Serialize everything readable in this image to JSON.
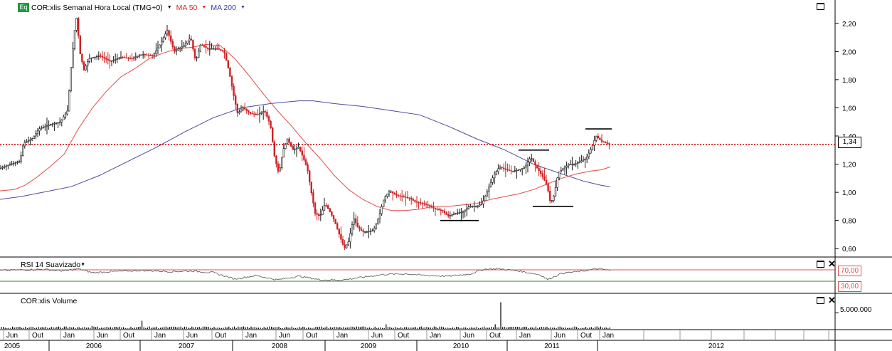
{
  "header": {
    "badge": "Eq",
    "instrument": "COR:xlis Semanal Hora Local (TMG+0)",
    "ma50_label": "MA 50",
    "ma200_label": "MA 200"
  },
  "rsi_panel": {
    "title": "RSI 14 Suavizado",
    "level_high": "70,00",
    "level_low": "30,00"
  },
  "volume_panel": {
    "title": "COR:xlis Volume",
    "axis_label": "5.000.000"
  },
  "last_price_label": "1,34",
  "colors": {
    "up": "#1a1a1a",
    "down": "#cc2222",
    "ma50": "#e34a4a",
    "ma200": "#4a4aa0",
    "rsi_high": "#d9534f",
    "rsi_low": "#2e8b2e",
    "price_line": "#cc0000"
  },
  "chart_data": [
    {
      "type": "candlestick",
      "ylim": [
        0.5,
        2.3
      ],
      "y_ticks": [
        "0,60",
        "0,80",
        "1,00",
        "1,20",
        "1,40",
        "1,60",
        "1,80",
        "2,00",
        "2,20"
      ],
      "last_price": 1.34,
      "x_month_labels": [
        "Jun",
        "Out",
        "Jan",
        "Jun",
        "Out",
        "Jan",
        "Jun",
        "Out",
        "Jan",
        "Jun",
        "Out",
        "Jan",
        "Jun",
        "Out",
        "Jan",
        "Jun",
        "Out",
        "Jan",
        "Jun",
        "Out",
        "Jan"
      ],
      "x_year_labels": [
        "2005",
        "2006",
        "2007",
        "2008",
        "2009",
        "2010",
        "2011",
        "2012"
      ],
      "price_path": [
        [
          0,
          1.17
        ],
        [
          15,
          1.2
        ],
        [
          28,
          1.22
        ],
        [
          33,
          1.35
        ],
        [
          45,
          1.38
        ],
        [
          55,
          1.45
        ],
        [
          70,
          1.48
        ],
        [
          85,
          1.5
        ],
        [
          95,
          1.58
        ],
        [
          100,
          1.9
        ],
        [
          105,
          2.15
        ],
        [
          108,
          2.25
        ],
        [
          112,
          2.0
        ],
        [
          118,
          1.87
        ],
        [
          125,
          1.95
        ],
        [
          140,
          1.97
        ],
        [
          155,
          1.93
        ],
        [
          170,
          1.96
        ],
        [
          185,
          1.95
        ],
        [
          200,
          1.98
        ],
        [
          215,
          1.97
        ],
        [
          225,
          2.05
        ],
        [
          235,
          2.15
        ],
        [
          245,
          2.0
        ],
        [
          258,
          2.04
        ],
        [
          268,
          2.1
        ],
        [
          275,
          1.93
        ],
        [
          282,
          2.05
        ],
        [
          292,
          2.02
        ],
        [
          305,
          2.02
        ],
        [
          315,
          2.0
        ],
        [
          322,
          1.86
        ],
        [
          328,
          1.7
        ],
        [
          334,
          1.56
        ],
        [
          342,
          1.6
        ],
        [
          352,
          1.56
        ],
        [
          362,
          1.55
        ],
        [
          372,
          1.58
        ],
        [
          380,
          1.48
        ],
        [
          386,
          1.25
        ],
        [
          392,
          1.13
        ],
        [
          398,
          1.3
        ],
        [
          404,
          1.38
        ],
        [
          412,
          1.3
        ],
        [
          420,
          1.32
        ],
        [
          426,
          1.25
        ],
        [
          432,
          1.17
        ],
        [
          437,
          1.02
        ],
        [
          443,
          0.85
        ],
        [
          450,
          0.83
        ],
        [
          457,
          0.92
        ],
        [
          463,
          0.87
        ],
        [
          470,
          0.8
        ],
        [
          477,
          0.7
        ],
        [
          484,
          0.6
        ],
        [
          490,
          0.65
        ],
        [
          497,
          0.82
        ],
        [
          503,
          0.75
        ],
        [
          510,
          0.72
        ],
        [
          517,
          0.72
        ],
        [
          525,
          0.73
        ],
        [
          533,
          0.83
        ],
        [
          540,
          0.96
        ],
        [
          548,
          1.01
        ],
        [
          556,
          0.98
        ],
        [
          565,
          0.97
        ],
        [
          575,
          0.96
        ],
        [
          585,
          0.93
        ],
        [
          595,
          0.92
        ],
        [
          605,
          0.9
        ],
        [
          613,
          0.88
        ],
        [
          622,
          0.87
        ],
        [
          630,
          0.83
        ],
        [
          640,
          0.85
        ],
        [
          650,
          0.86
        ],
        [
          660,
          0.9
        ],
        [
          670,
          0.9
        ],
        [
          678,
          0.92
        ],
        [
          686,
          1.02
        ],
        [
          694,
          1.12
        ],
        [
          702,
          1.18
        ],
        [
          712,
          1.16
        ],
        [
          720,
          1.15
        ],
        [
          730,
          1.16
        ],
        [
          738,
          1.18
        ],
        [
          746,
          1.25
        ],
        [
          754,
          1.18
        ],
        [
          762,
          1.12
        ],
        [
          769,
          1.05
        ],
        [
          774,
          0.92
        ],
        [
          779,
          0.98
        ],
        [
          785,
          1.14
        ],
        [
          792,
          1.17
        ],
        [
          800,
          1.2
        ],
        [
          808,
          1.2
        ],
        [
          816,
          1.22
        ],
        [
          824,
          1.24
        ],
        [
          832,
          1.32
        ],
        [
          838,
          1.4
        ],
        [
          846,
          1.36
        ],
        [
          852,
          1.35
        ],
        [
          858,
          1.34
        ]
      ],
      "ma50_path": [
        [
          0,
          1.01
        ],
        [
          20,
          1.02
        ],
        [
          35,
          1.05
        ],
        [
          50,
          1.1
        ],
        [
          70,
          1.18
        ],
        [
          90,
          1.27
        ],
        [
          110,
          1.45
        ],
        [
          130,
          1.6
        ],
        [
          150,
          1.72
        ],
        [
          170,
          1.82
        ],
        [
          190,
          1.88
        ],
        [
          210,
          1.95
        ],
        [
          230,
          1.99
        ],
        [
          250,
          2.02
        ],
        [
          270,
          2.03
        ],
        [
          290,
          2.05
        ],
        [
          310,
          2.04
        ],
        [
          330,
          1.95
        ],
        [
          350,
          1.83
        ],
        [
          370,
          1.7
        ],
        [
          390,
          1.58
        ],
        [
          410,
          1.47
        ],
        [
          430,
          1.35
        ],
        [
          450,
          1.24
        ],
        [
          470,
          1.12
        ],
        [
          490,
          1.02
        ],
        [
          510,
          0.95
        ],
        [
          530,
          0.9
        ],
        [
          550,
          0.87
        ],
        [
          570,
          0.87
        ],
        [
          590,
          0.88
        ],
        [
          610,
          0.9
        ],
        [
          630,
          0.9
        ],
        [
          650,
          0.91
        ],
        [
          670,
          0.92
        ],
        [
          690,
          0.95
        ],
        [
          710,
          0.97
        ],
        [
          730,
          0.99
        ],
        [
          750,
          1.02
        ],
        [
          770,
          1.06
        ],
        [
          790,
          1.1
        ],
        [
          810,
          1.13
        ],
        [
          830,
          1.15
        ],
        [
          845,
          1.16
        ],
        [
          858,
          1.18
        ]
      ],
      "ma200_path": [
        [
          0,
          0.95
        ],
        [
          30,
          0.97
        ],
        [
          60,
          1.0
        ],
        [
          100,
          1.04
        ],
        [
          140,
          1.12
        ],
        [
          180,
          1.22
        ],
        [
          220,
          1.32
        ],
        [
          260,
          1.43
        ],
        [
          300,
          1.53
        ],
        [
          340,
          1.6
        ],
        [
          380,
          1.63
        ],
        [
          420,
          1.65
        ],
        [
          440,
          1.65
        ],
        [
          470,
          1.63
        ],
        [
          510,
          1.61
        ],
        [
          550,
          1.58
        ],
        [
          590,
          1.55
        ],
        [
          630,
          1.47
        ],
        [
          670,
          1.38
        ],
        [
          710,
          1.3
        ],
        [
          750,
          1.2
        ],
        [
          790,
          1.13
        ],
        [
          820,
          1.08
        ],
        [
          845,
          1.05
        ],
        [
          858,
          1.04
        ]
      ],
      "annotations": [
        {
          "type": "hline",
          "from": 619,
          "to": 673,
          "y": 0.8
        },
        {
          "type": "hline",
          "from": 729,
          "to": 772,
          "y": 1.3
        },
        {
          "type": "hline",
          "from": 749,
          "to": 806,
          "y": 0.9
        },
        {
          "type": "hline",
          "from": 823,
          "to": 860,
          "y": 1.45
        }
      ]
    },
    {
      "type": "line",
      "name": "RSI 14",
      "ylim": [
        0,
        100
      ],
      "levels": [
        70,
        30
      ],
      "values_path": [
        [
          0,
          68
        ],
        [
          30,
          70
        ],
        [
          60,
          72
        ],
        [
          90,
          66
        ],
        [
          110,
          74
        ],
        [
          130,
          60
        ],
        [
          160,
          64
        ],
        [
          200,
          68
        ],
        [
          240,
          64
        ],
        [
          270,
          66
        ],
        [
          300,
          60
        ],
        [
          330,
          38
        ],
        [
          360,
          50
        ],
        [
          390,
          35
        ],
        [
          420,
          48
        ],
        [
          450,
          35
        ],
        [
          480,
          34
        ],
        [
          510,
          44
        ],
        [
          540,
          54
        ],
        [
          570,
          56
        ],
        [
          600,
          50
        ],
        [
          630,
          48
        ],
        [
          660,
          55
        ],
        [
          680,
          72
        ],
        [
          700,
          74
        ],
        [
          730,
          66
        ],
        [
          760,
          52
        ],
        [
          770,
          36
        ],
        [
          790,
          58
        ],
        [
          820,
          66
        ],
        [
          840,
          74
        ],
        [
          858,
          68
        ]
      ]
    },
    {
      "type": "bar",
      "name": "Volume",
      "ylim": [
        0,
        10000000
      ],
      "values_path": [
        [
          2,
          300000
        ],
        [
          30,
          200000
        ],
        [
          60,
          300000
        ],
        [
          100,
          400000
        ],
        [
          130,
          800000
        ],
        [
          160,
          300000
        ],
        [
          199,
          2300000
        ],
        [
          220,
          300000
        ],
        [
          260,
          400000
        ],
        [
          300,
          600000
        ],
        [
          340,
          300000
        ],
        [
          380,
          500000
        ],
        [
          410,
          400000
        ],
        [
          450,
          500000
        ],
        [
          500,
          300000
        ],
        [
          542,
          1300000
        ],
        [
          580,
          300000
        ],
        [
          610,
          700000
        ],
        [
          650,
          300000
        ],
        [
          680,
          400000
        ],
        [
          696,
          1300000
        ],
        [
          703,
          7500000
        ],
        [
          730,
          300000
        ],
        [
          770,
          600000
        ],
        [
          800,
          300000
        ],
        [
          830,
          400000
        ],
        [
          858,
          200000
        ]
      ]
    }
  ]
}
